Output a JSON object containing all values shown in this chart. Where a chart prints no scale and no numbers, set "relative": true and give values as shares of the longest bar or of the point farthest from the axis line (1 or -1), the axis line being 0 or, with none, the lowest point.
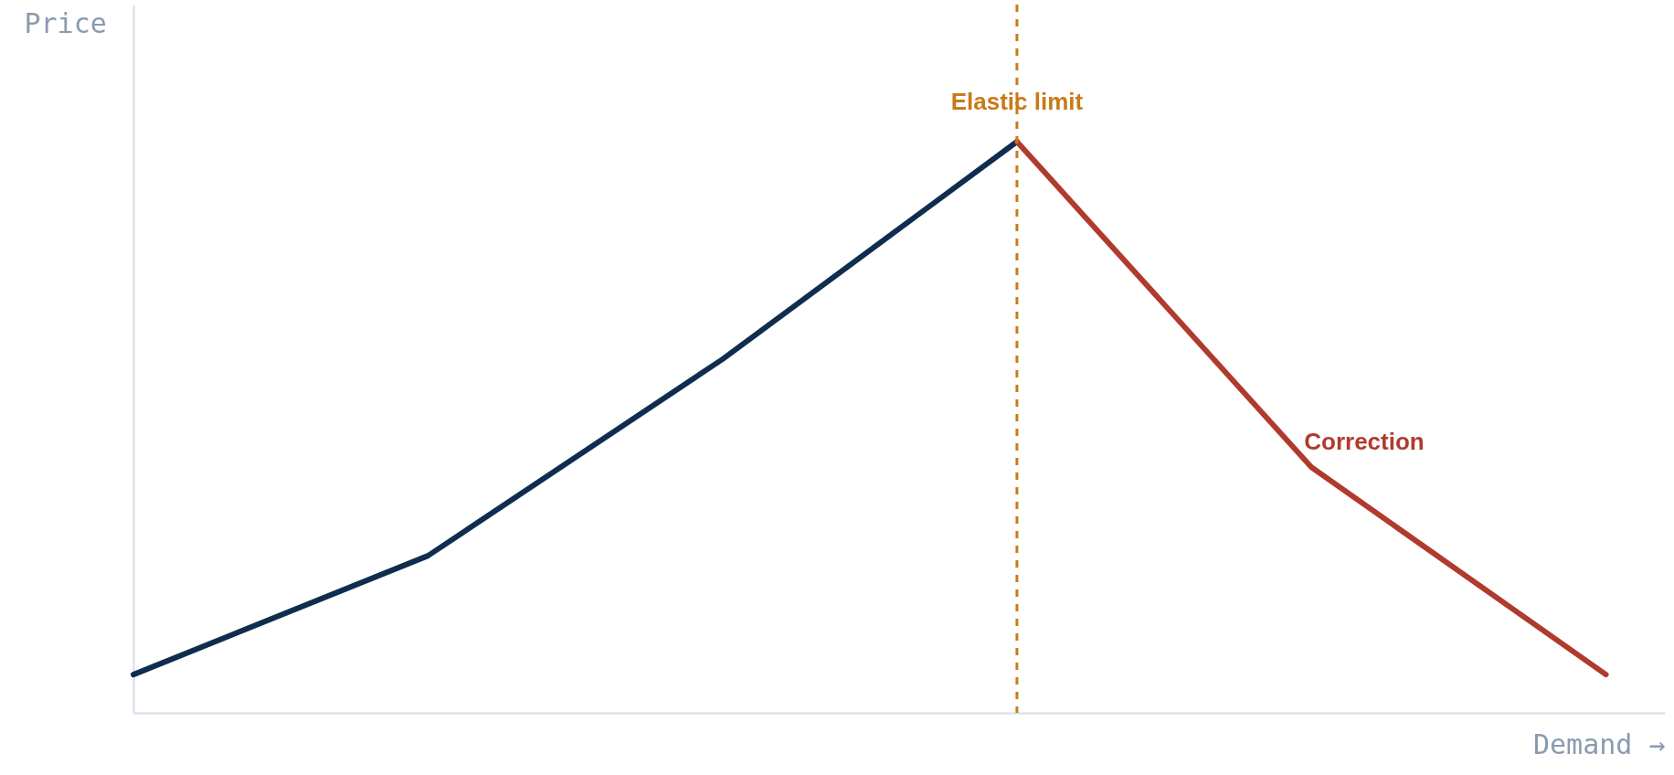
{
  "chart_data": {
    "type": "line",
    "relative": true,
    "xlabel": "Demand →",
    "ylabel": "Price",
    "categories": [
      null,
      null,
      null,
      null,
      null,
      null
    ],
    "tick_labels": false,
    "marker": "none",
    "line_style": "solid",
    "series": [
      {
        "color": "#0f2d4f",
        "values": [
          0.067,
          0.275,
          0.619,
          1,
          null,
          null
        ]
      },
      {
        "name": "Correction",
        "color": "#b03a2e",
        "values": [
          null,
          null,
          null,
          1,
          0.43,
          0.067
        ]
      }
    ],
    "ref_lines": [
      {
        "axis": "x",
        "label": "Elastic limit",
        "color": "#c87a1a",
        "line_style": "dashed"
      }
    ]
  }
}
